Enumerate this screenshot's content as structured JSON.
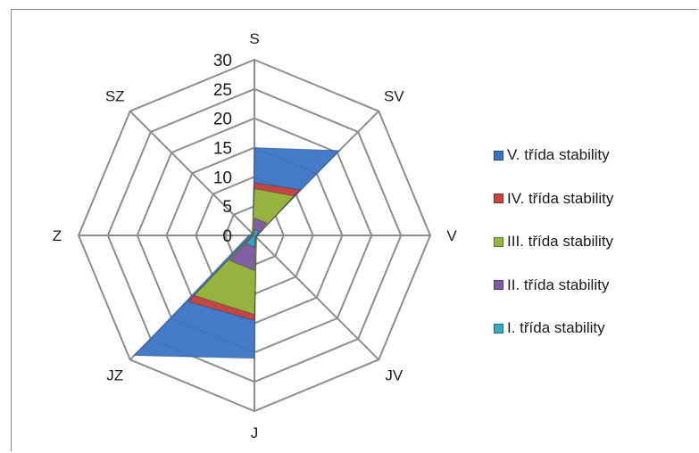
{
  "chart_data": {
    "type": "radar",
    "title": "",
    "directions": [
      "S",
      "SV",
      "V",
      "JV",
      "J",
      "JZ",
      "Z",
      "SZ"
    ],
    "rlim": [
      0,
      30
    ],
    "ticks": [
      "0",
      "5",
      "10",
      "15",
      "20",
      "25",
      "30"
    ],
    "grid": true,
    "stacked": true,
    "legend_position": "right",
    "series": [
      {
        "name": "V. třída stability",
        "color": "#3b74c6",
        "values": [
          15,
          20.5,
          0.5,
          0.5,
          21,
          29,
          1,
          0.5
        ]
      },
      {
        "name": "IV. třída stability",
        "color": "#c8453f",
        "values": [
          9,
          11,
          0.5,
          0.5,
          14.5,
          16,
          0.5,
          0.5
        ]
      },
      {
        "name": "III. třída stability",
        "color": "#93b83f",
        "values": [
          8,
          9.5,
          0.5,
          0.5,
          13.5,
          14.5,
          0.5,
          0.5
        ]
      },
      {
        "name": "II. třída stability",
        "color": "#7d5aa6",
        "values": [
          3,
          3,
          0.5,
          0.3,
          6,
          6,
          0.3,
          0.3
        ]
      },
      {
        "name": "I. třída stability",
        "color": "#38a8c4",
        "values": [
          1,
          1,
          0.3,
          0.2,
          2,
          2,
          0.2,
          0.2
        ]
      }
    ]
  }
}
